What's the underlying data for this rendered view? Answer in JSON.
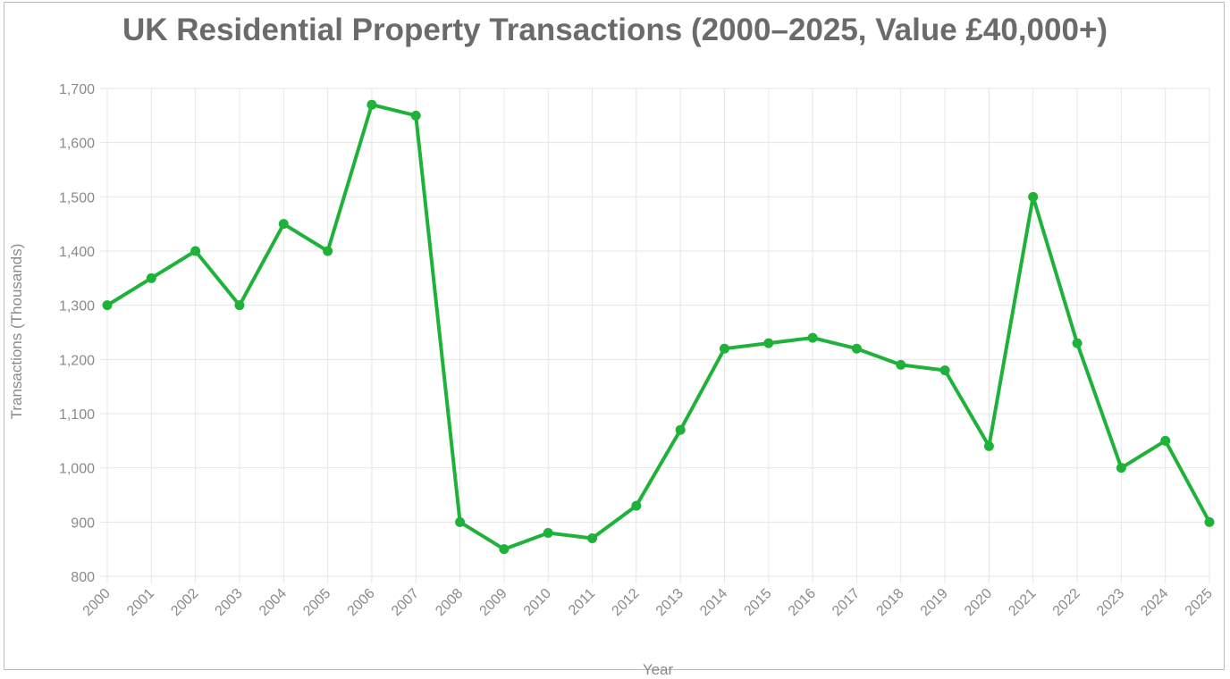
{
  "chart_data": {
    "type": "line",
    "title": "UK Residential Property Transactions (2000–2025, Value £40,000+)",
    "xlabel": "Year",
    "ylabel": "Transactions (Thousands)",
    "ylim": [
      800,
      1700
    ],
    "yticks": [
      "1,700",
      "1,600",
      "1,500",
      "1,400",
      "1,300",
      "1,200",
      "1,100",
      "1,000",
      "900",
      "800"
    ],
    "ytick_values": [
      1700,
      1600,
      1500,
      1400,
      1300,
      1200,
      1100,
      1000,
      900,
      800
    ],
    "categories": [
      "2000",
      "2001",
      "2002",
      "2003",
      "2004",
      "2005",
      "2006",
      "2007",
      "2008",
      "2009",
      "2010",
      "2011",
      "2012",
      "2013",
      "2014",
      "2015",
      "2016",
      "2017",
      "2018",
      "2019",
      "2020",
      "2021",
      "2022",
      "2023",
      "2024",
      "2025"
    ],
    "values": [
      1300,
      1350,
      1400,
      1300,
      1450,
      1400,
      1670,
      1650,
      900,
      850,
      880,
      870,
      930,
      1070,
      1220,
      1230,
      1240,
      1220,
      1190,
      1180,
      1040,
      1500,
      1230,
      1000,
      1050,
      900
    ],
    "grid": true,
    "colors": {
      "line": "#1fb23a",
      "grid": "#e6e6e6",
      "text": "#8a8a8a",
      "title": "#6b6b6b"
    }
  }
}
